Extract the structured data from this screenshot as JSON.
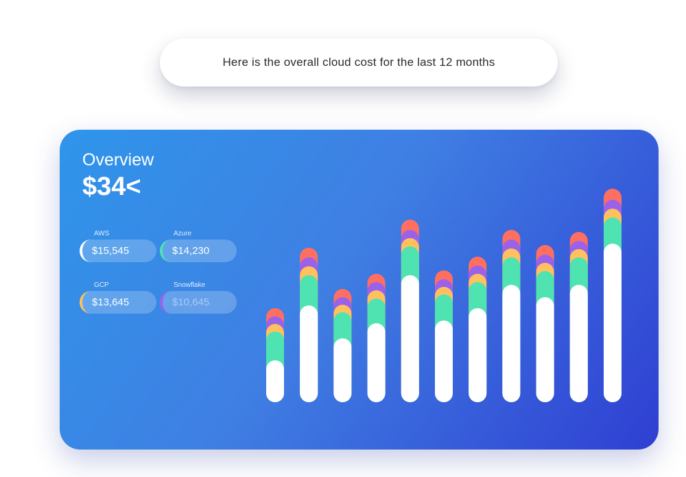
{
  "message": {
    "text": "Here is the overall cloud cost for the last 12 months"
  },
  "overview": {
    "title": "Overview",
    "amount": "$34<"
  },
  "providers": [
    {
      "label": "AWS",
      "value": "$15,545",
      "color": "#ffffff"
    },
    {
      "label": "Azure",
      "value": "$14,230",
      "color": "#4ee3b0"
    },
    {
      "label": "GCP",
      "value": "$13,645",
      "color": "#ffc15e"
    },
    {
      "label": "Snowflake",
      "value": "$10,645",
      "color": "#9b62e8"
    }
  ],
  "colors": {
    "aws": "#ffffff",
    "azure": "#4ee3b0",
    "gcp": "#ffc15e",
    "snowflake": "#9b62e8",
    "other": "#ff6f61"
  },
  "chart_data": {
    "type": "bar",
    "stacked": true,
    "categories": [
      "",
      "",
      "",
      "",
      "",
      "",
      "",
      "",
      "",
      "",
      ""
    ],
    "series": [
      {
        "values": [
          48,
          128,
          80,
          102,
          172,
          106,
          124,
          158,
          140,
          158,
          218
        ]
      },
      {
        "values": [
          42,
          44,
          38,
          36,
          42,
          38,
          38,
          40,
          38,
          40,
          38
        ]
      },
      {
        "values": [
          11,
          13,
          11,
          12,
          12,
          11,
          12,
          13,
          12,
          12,
          13
        ]
      },
      {
        "values": [
          11,
          13,
          11,
          12,
          12,
          11,
          12,
          13,
          12,
          12,
          13
        ]
      },
      {
        "values": [
          12,
          14,
          12,
          12,
          15,
          13,
          13,
          14,
          14,
          13,
          16
        ]
      }
    ],
    "ylim": [
      0,
      300
    ]
  }
}
